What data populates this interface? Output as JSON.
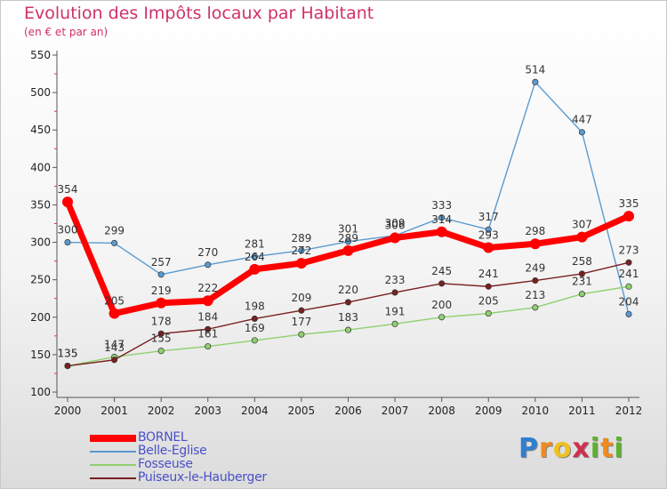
{
  "header": {
    "title": "Evolution des Impôts locaux par Habitant",
    "subtitle": "(en € et par an)"
  },
  "logo": {
    "text": "Proxiti",
    "letters": [
      "P",
      "r",
      "o",
      "x",
      "i",
      "t",
      "i"
    ]
  },
  "colors": {
    "title": "#d0306a",
    "bornel": "#ff0000",
    "belle_eglise": "#5a9ad0",
    "fosseuse": "#90d070",
    "puiseux": "#7a2020"
  },
  "chart_data": {
    "type": "line",
    "title": "Evolution des Impôts locaux par Habitant",
    "subtitle": "(en € et par an)",
    "xlabel": "",
    "ylabel": "",
    "x": [
      "2000",
      "2001",
      "2002",
      "2003",
      "2004",
      "2005",
      "2006",
      "2007",
      "2008",
      "2009",
      "2010",
      "2011",
      "2012"
    ],
    "ylim": [
      100,
      550
    ],
    "yticks": [
      100,
      150,
      200,
      250,
      300,
      350,
      400,
      450,
      500,
      550
    ],
    "grid": false,
    "legend_position": "bottom-left",
    "series": [
      {
        "name": "BORNEL",
        "color": "#ff0000",
        "values": [
          354,
          205,
          219,
          222,
          264,
          272,
          289,
          306,
          314,
          293,
          298,
          307,
          335
        ]
      },
      {
        "name": "Belle-Eglise",
        "color": "#5a9ad0",
        "values": [
          300,
          299,
          257,
          270,
          281,
          289,
          301,
          309,
          333,
          317,
          514,
          447,
          204
        ]
      },
      {
        "name": "Fosseuse",
        "color": "#90d070",
        "values": [
          135,
          147,
          155,
          161,
          169,
          177,
          183,
          191,
          200,
          205,
          213,
          231,
          241
        ]
      },
      {
        "name": "Puiseux-le-Hauberger",
        "color": "#7a2020",
        "values": [
          135,
          143,
          178,
          184,
          198,
          209,
          220,
          233,
          245,
          241,
          249,
          258,
          273
        ]
      }
    ]
  }
}
